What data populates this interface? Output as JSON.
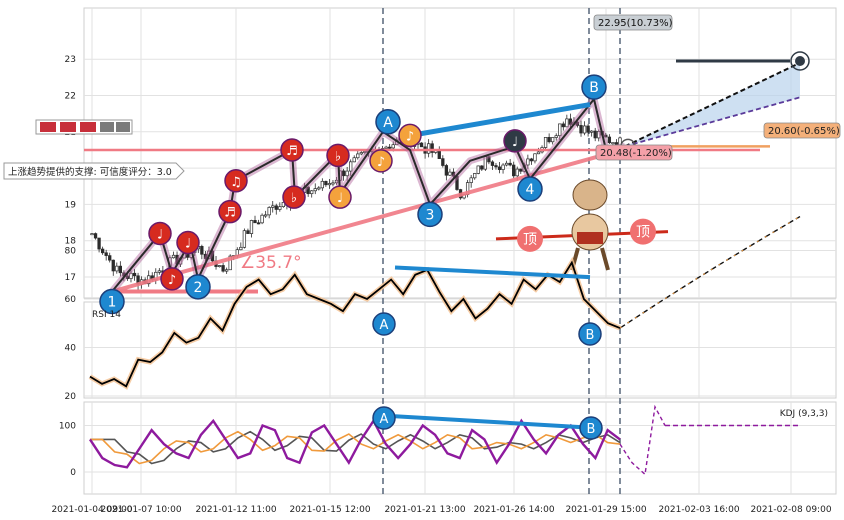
{
  "chart_data": [
    {
      "type": "candlestick",
      "title": "",
      "ylim": [
        16.1,
        23.6
      ],
      "yticks": [
        17,
        18,
        19,
        20,
        21,
        22,
        23
      ],
      "grid": true,
      "close_series_approx": [
        {
          "x": "2021-01-04 09:00",
          "y": 18.2
        },
        {
          "x": "2021-01-05",
          "y": 17.1
        },
        {
          "x": "2021-01-06",
          "y": 16.9
        },
        {
          "x": "2021-01-07",
          "y": 17.4
        },
        {
          "x": "2021-01-08",
          "y": 17.8
        },
        {
          "x": "2021-01-11",
          "y": 17.2
        },
        {
          "x": "2021-01-12",
          "y": 18.4
        },
        {
          "x": "2021-01-13",
          "y": 19.0
        },
        {
          "x": "2021-01-14",
          "y": 19.3
        },
        {
          "x": "2021-01-15",
          "y": 19.6
        },
        {
          "x": "2021-01-18",
          "y": 20.2
        },
        {
          "x": "2021-01-19",
          "y": 20.6
        },
        {
          "x": "2021-01-20",
          "y": 20.8
        },
        {
          "x": "2021-01-21",
          "y": 20.4
        },
        {
          "x": "2021-01-22",
          "y": 19.3
        },
        {
          "x": "2021-01-25",
          "y": 20.3
        },
        {
          "x": "2021-01-26",
          "y": 19.9
        },
        {
          "x": "2021-01-27",
          "y": 20.6
        },
        {
          "x": "2021-01-28",
          "y": 21.4
        },
        {
          "x": "2021-01-29",
          "y": 20.9
        },
        {
          "x": "2021-02-01",
          "y": 20.7
        }
      ],
      "wave_points": [
        {
          "label": "1",
          "x": "2021-01-05",
          "y": 16.6
        },
        {
          "label": "2",
          "x": "2021-01-08",
          "y": 16.95
        },
        {
          "label": "A",
          "x": "2021-01-20",
          "y": 21.0
        },
        {
          "label": "3",
          "x": "2021-01-22",
          "y": 19.0
        },
        {
          "label": "4",
          "x": "2021-01-27",
          "y": 19.7
        },
        {
          "label": "B",
          "x": "2021-01-29",
          "y": 21.9
        }
      ],
      "annotations": {
        "trend_angle": "∠35.7°",
        "support_label": "上涨趋势提供的支撑: 可信度评分：",
        "support_score": "3.0",
        "target_label": "22.95(10.73%)",
        "target_value": 22.95,
        "price_label_1": "20.60(-0.65%)",
        "price_value_1": 20.6,
        "price_label_2": "20.48(-1.20%)",
        "price_value_2": 20.48,
        "resistance_level": 20.5,
        "top_text_1": "顶",
        "top_text_2": "顶"
      }
    },
    {
      "type": "line",
      "title": "RSI 14",
      "ylim": [
        18,
        100
      ],
      "yticks": [
        20,
        40,
        60,
        80
      ],
      "series": [
        {
          "values_approx": [
            28,
            25,
            27,
            24,
            35,
            34,
            38,
            46,
            42,
            44,
            52,
            47,
            58,
            65,
            68,
            62,
            64,
            70,
            62,
            60,
            58,
            55,
            62,
            60,
            64,
            68,
            62,
            70,
            72,
            63,
            55,
            60,
            52,
            56,
            62,
            58,
            68,
            64,
            70,
            67,
            75,
            60,
            55,
            50,
            48
          ]
        }
      ],
      "projection_end": 94
    },
    {
      "type": "line",
      "title": "KDJ (9,3,3)",
      "ylim": [
        -60,
        150
      ],
      "yticks": [
        0,
        100
      ],
      "series": [
        {
          "values_approx": [
            70,
            30,
            15,
            10,
            50,
            90,
            60,
            40,
            30,
            80,
            110,
            70,
            30,
            40,
            100,
            90,
            30,
            20,
            85,
            100,
            60,
            20,
            70,
            110,
            60,
            30,
            60,
            100,
            80,
            40,
            30,
            90,
            70,
            20,
            60,
            110,
            70,
            40,
            80,
            100,
            60,
            30,
            90,
            70
          ]
        }
      ],
      "projection_level": 100
    }
  ],
  "x_ticks": [
    "2021-01-04 09:00",
    "2021-01-07 10:00",
    "2021-01-12 11:00",
    "2021-01-15 12:00",
    "2021-01-21 13:00",
    "2021-01-26 14:00",
    "2021-01-29 15:00",
    "2021-02-03 16:00",
    "2021-02-08 09:00"
  ],
  "colors": {
    "up": "#2b2b2b",
    "wave_circle": "#1e88d0",
    "note_red": "#d62b1f",
    "note_orange": "#f4a23c",
    "note_dark": "#2f3a45",
    "trend_pink": "#f07a84",
    "rsi_line": "#000000",
    "kdj_purple": "#8e1a9e",
    "kdj_orange": "#f09a3c",
    "kdj_gray": "#555555"
  },
  "panel_labels": {
    "rsi": "RSI 14",
    "kdj": "KDJ (9,3,3)"
  }
}
